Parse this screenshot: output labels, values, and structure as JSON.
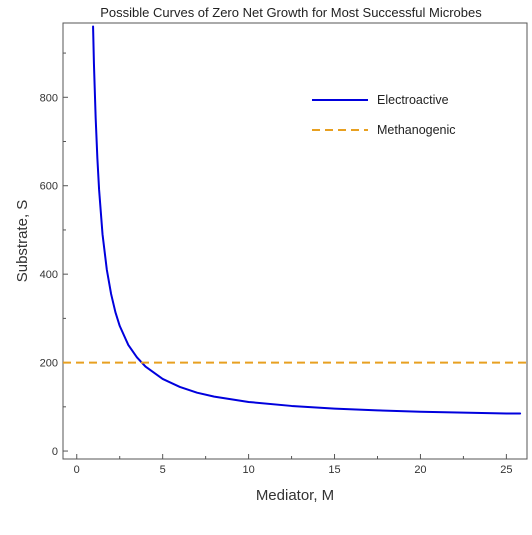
{
  "chart_data": {
    "type": "line",
    "title": "Possible Curves of Zero Net Growth for Most Successful Microbes",
    "xlabel": "Mediator, M",
    "ylabel": "Substrate, S",
    "xlim": [
      -0.8,
      26.2
    ],
    "ylim": [
      -18,
      968
    ],
    "x_ticks": [
      0,
      5,
      10,
      15,
      20,
      25
    ],
    "y_ticks": [
      0,
      200,
      400,
      600,
      800
    ],
    "grid": false,
    "legend_position": "top-right",
    "series": [
      {
        "name": "Electroactive",
        "color": "#0000dd",
        "style": "solid",
        "x": [
          0.95,
          1.0,
          1.1,
          1.2,
          1.3,
          1.5,
          1.75,
          2.0,
          2.25,
          2.5,
          3.0,
          3.5,
          4.0,
          5.0,
          6.0,
          7.0,
          8.0,
          10.0,
          12.5,
          15.0,
          17.5,
          20.0,
          22.5,
          25.0,
          25.8
        ],
        "y": [
          960,
          876,
          754,
          662,
          591,
          490,
          410,
          355,
          314,
          283,
          240,
          212,
          191,
          163,
          145,
          132,
          123,
          111,
          102,
          96,
          92,
          89,
          87,
          85,
          85
        ]
      },
      {
        "name": "Methanogenic",
        "color": "#e8a020",
        "style": "dashed",
        "x": [
          -0.8,
          26.2
        ],
        "y": [
          200,
          200
        ]
      }
    ]
  }
}
